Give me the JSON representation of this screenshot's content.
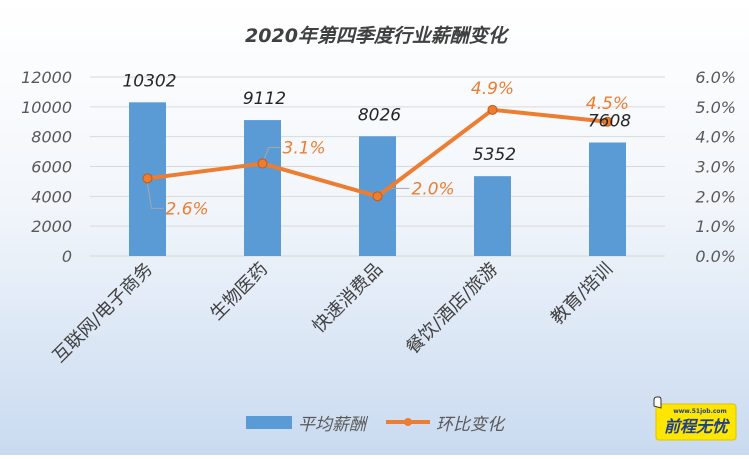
{
  "chart_data": {
    "type": "bar",
    "title": "2020年第四季度行业薪酬变化",
    "categories": [
      "互联网/电子商务",
      "生物医药",
      "快速消费品",
      "餐饮/酒店/旅游",
      "教育/培训"
    ],
    "series": [
      {
        "name": "平均薪酬",
        "type": "bar",
        "axis": "left",
        "color": "#5B9BD5",
        "values": [
          10302,
          9112,
          8026,
          5352,
          7608
        ],
        "labels": [
          "10302",
          "9112",
          "8026",
          "5352",
          "7608"
        ]
      },
      {
        "name": "环比变化",
        "type": "line",
        "axis": "right",
        "color": "#ED7D31",
        "values": [
          2.6,
          3.1,
          2.0,
          4.9,
          4.5
        ],
        "labels": [
          "2.6%",
          "3.1%",
          "2.0%",
          "4.9%",
          "4.5%"
        ]
      }
    ],
    "y_left": {
      "min": 0,
      "max": 12000,
      "step": 2000,
      "ticks": [
        "0",
        "2000",
        "4000",
        "6000",
        "8000",
        "10000",
        "12000"
      ]
    },
    "y_right": {
      "min": 0,
      "max": 6,
      "step": 1,
      "ticks": [
        "0.0%",
        "1.0%",
        "2.0%",
        "3.0%",
        "4.0%",
        "5.0%",
        "6.0%"
      ]
    },
    "grid": true,
    "legend_position": "bottom"
  },
  "logo": {
    "url": "www.51job.com",
    "text": "前程无忧",
    "color": "#FFE600"
  }
}
